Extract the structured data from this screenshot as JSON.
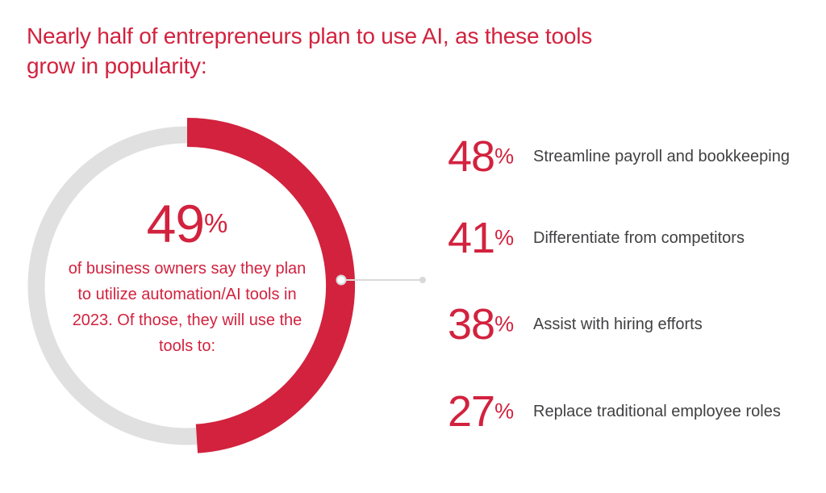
{
  "theme": {
    "accent": "#d2223e",
    "track": "#e0e0e0",
    "label_text": "#414042",
    "connector": "#d9d9d9",
    "background": "#ffffff"
  },
  "ui": {
    "percent_sign": "%"
  },
  "title": {
    "lines": [
      "Nearly half of entrepreneurs plan to use AI, as these tools",
      "grow in popularity:"
    ]
  },
  "chart_data": {
    "type": "pie",
    "subtype": "donut",
    "title": "Nearly half of entrepreneurs plan to use AI, as these tools grow in popularity:",
    "labels": [
      "Plan to utilize automation/AI tools in 2023",
      "Remainder"
    ],
    "values": [
      49,
      51
    ],
    "colors": [
      "#d2223e",
      "#e0e0e0"
    ],
    "start_angle_deg": -90,
    "direction": "clockwise",
    "legend_position": "none",
    "center": {
      "value": "49",
      "text": "of business owners say they plan to utilize automation/AI tools in 2023. Of those, they will use the tools to:"
    },
    "breakdown": {
      "items": [
        {
          "value": "48",
          "label": "Streamline payroll and bookkeeping"
        },
        {
          "value": "41",
          "label": "Differentiate from competitors"
        },
        {
          "value": "38",
          "label": "Assist with hiring efforts"
        },
        {
          "value": "27",
          "label": "Replace traditional employee roles"
        }
      ]
    }
  }
}
